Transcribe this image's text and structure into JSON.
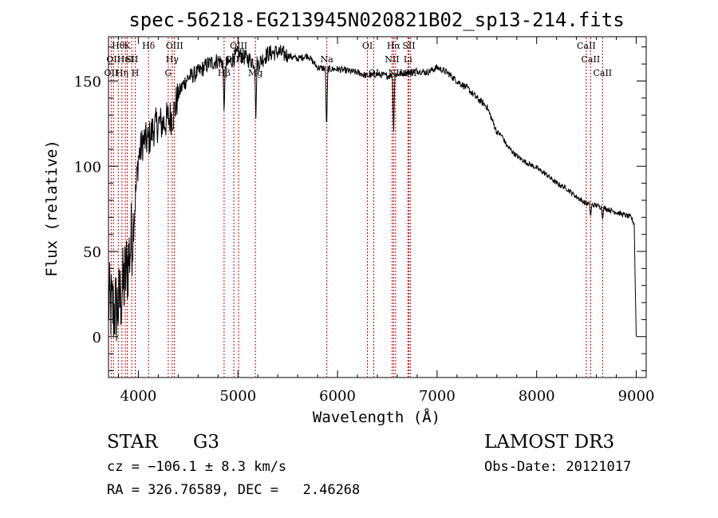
{
  "chart_data": {
    "type": "line",
    "title": "spec-56218-EG213945N020821B02_sp13-214.fits",
    "xlabel": "Wavelength (Å)",
    "ylabel": "Flux (relative)",
    "xlim": [
      3700,
      9100
    ],
    "ylim": [
      -24,
      176
    ],
    "xticks": [
      4000,
      5000,
      6000,
      7000,
      8000,
      9000
    ],
    "yticks": [
      0,
      50,
      100,
      150
    ],
    "line_color": "#000000",
    "marker_color": "#cc0000",
    "spectrum_anchors": {
      "x": [
        3700,
        3750,
        3800,
        3850,
        3900,
        3950,
        4000,
        4050,
        4100,
        4150,
        4200,
        4250,
        4300,
        4350,
        4400,
        4450,
        4500,
        4600,
        4700,
        4800,
        4900,
        5000,
        5100,
        5200,
        5300,
        5400,
        5500,
        5600,
        5700,
        5800,
        5900,
        6000,
        6100,
        6200,
        6300,
        6400,
        6500,
        6600,
        6700,
        6800,
        6900,
        7000,
        7100,
        7200,
        7300,
        7400,
        7500,
        7600,
        7650,
        7700,
        7800,
        7900,
        8000,
        8100,
        8200,
        8300,
        8400,
        8500,
        8600,
        8700,
        8800,
        8900,
        8950,
        8980,
        8990,
        9000
      ],
      "y": [
        20,
        15,
        18,
        30,
        45,
        65,
        105,
        115,
        115,
        122,
        125,
        125,
        128,
        130,
        142,
        148,
        152,
        155,
        160,
        162,
        160,
        166,
        163,
        160,
        166,
        167,
        165,
        163,
        165,
        158,
        157,
        157,
        156,
        155,
        153,
        154,
        153,
        154,
        155,
        156,
        155,
        158,
        155,
        150,
        146,
        140,
        135,
        120,
        118,
        112,
        106,
        102,
        99,
        95,
        90,
        87,
        82,
        78,
        77,
        75,
        73,
        71,
        70,
        66,
        30,
        0
      ]
    },
    "absorption_dips": [
      {
        "x": 4861,
        "y": 130
      },
      {
        "x": 5180,
        "y": 128
      },
      {
        "x": 5890,
        "y": 120
      },
      {
        "x": 6563,
        "y": 117
      },
      {
        "x": 8542,
        "y": 70
      },
      {
        "x": 8662,
        "y": 68
      }
    ],
    "line_markers": [
      {
        "x": 3727,
        "row": 2,
        "label": "OII"
      },
      {
        "x": 3750,
        "row": 1,
        "label": "OII"
      },
      {
        "x": 3798,
        "row": 0,
        "label": "Hθ"
      },
      {
        "x": 3835,
        "row": 2,
        "label": "Hη"
      },
      {
        "x": 3869,
        "row": 1,
        "label": "HeI"
      },
      {
        "x": 3889,
        "row": 0,
        "label": "K"
      },
      {
        "x": 3934,
        "row": 1,
        "label": "SII"
      },
      {
        "x": 3969,
        "row": 2,
        "label": "H"
      },
      {
        "x": 4102,
        "row": 0,
        "label": "Hδ"
      },
      {
        "x": 4300,
        "row": 2,
        "label": "G"
      },
      {
        "x": 4340,
        "row": 1,
        "label": "Hγ"
      },
      {
        "x": 4363,
        "row": 0,
        "label": "OIII"
      },
      {
        "x": 4861,
        "row": 2,
        "label": "Hβ"
      },
      {
        "x": 4959,
        "row": 1,
        "label": "OIII"
      },
      {
        "x": 5007,
        "row": 0,
        "label": "OIII"
      },
      {
        "x": 5175,
        "row": 2,
        "label": "Mg"
      },
      {
        "x": 5893,
        "row": 1,
        "label": "Na"
      },
      {
        "x": 6300,
        "row": 0,
        "label": "OI"
      },
      {
        "x": 6364,
        "row": 2,
        "label": "OI"
      },
      {
        "x": 6548,
        "row": 1,
        "label": "NII"
      },
      {
        "x": 6563,
        "row": 0,
        "label": "Hα"
      },
      {
        "x": 6583,
        "row": 2,
        "label": "NII"
      },
      {
        "x": 6707,
        "row": 1,
        "label": "Li"
      },
      {
        "x": 6716,
        "row": 0,
        "label": "SII"
      },
      {
        "x": 6731,
        "row": 2,
        "label": "SII"
      },
      {
        "x": 8498,
        "row": 0,
        "label": "CaII"
      },
      {
        "x": 8542,
        "row": 1,
        "label": "CaII"
      },
      {
        "x": 8662,
        "row": 2,
        "label": "CaII"
      }
    ]
  },
  "info": {
    "class": "STAR",
    "subclass": "G3",
    "survey": "LAMOST DR3",
    "cz": "cz = −106.1 ± 8.3 km/s",
    "obsdate": "Obs-Date: 20121017",
    "radec": "RA = 326.76589, DEC =   2.46268"
  }
}
